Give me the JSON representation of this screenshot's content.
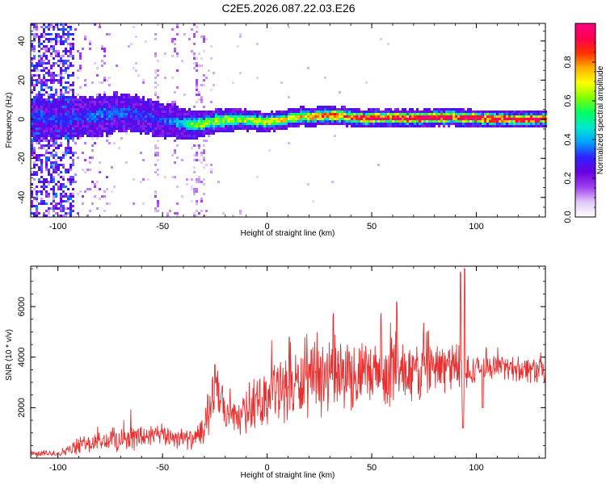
{
  "title": "C2E5.2026.087.22.03.E26",
  "chart_data": [
    {
      "type": "heatmap",
      "name": "spectrogram",
      "xlabel": "Height of straight line (km)",
      "ylabel": "Frequency (Hz)",
      "xlim": [
        -113,
        133
      ],
      "ylim": [
        -50,
        49
      ],
      "xticks": [
        -100,
        -50,
        0,
        50,
        100
      ],
      "yticks": [
        -40,
        -20,
        0,
        20,
        40
      ],
      "colorbar": {
        "label": "Normalized spectral amplitude",
        "range": [
          0,
          1
        ],
        "ticks": [
          "0.0",
          "0.2",
          "0.4",
          "0.6",
          "0.8"
        ],
        "tick_values": [
          0.0,
          0.2,
          0.4,
          0.6,
          0.8
        ],
        "colors": [
          "#ffffff",
          "#e0c8f8",
          "#a040f0",
          "#6a00e0",
          "#3020ff",
          "#00a0ff",
          "#00e8d0",
          "#00ff60",
          "#80ff00",
          "#ffff00",
          "#ffb000",
          "#ff3000",
          "#ff0050",
          "#ff0080"
        ]
      },
      "ridge": [
        {
          "x": -90,
          "f": 0.5,
          "noise": 1.0,
          "amp": 0.3
        },
        {
          "x": -80,
          "f": 2.5,
          "noise": 1.0,
          "amp": 0.35
        },
        {
          "x": -65,
          "f": 3.0,
          "noise": 0.9,
          "amp": 0.32
        },
        {
          "x": -50,
          "f": 0.0,
          "noise": 0.8,
          "amp": 0.3
        },
        {
          "x": -42,
          "f": -2.0,
          "noise": 0.7,
          "amp": 0.4
        },
        {
          "x": -35,
          "f": -3.0,
          "noise": 0.6,
          "amp": 0.55
        },
        {
          "x": -28,
          "f": -1.5,
          "noise": 0.5,
          "amp": 0.6
        },
        {
          "x": -15,
          "f": 0.0,
          "noise": 0.4,
          "amp": 0.6
        },
        {
          "x": 0,
          "f": -1.5,
          "noise": 0.3,
          "amp": 0.65
        },
        {
          "x": 15,
          "f": 1.0,
          "noise": 0.3,
          "amp": 0.7
        },
        {
          "x": 30,
          "f": 2.0,
          "noise": 0.3,
          "amp": 0.8
        },
        {
          "x": 45,
          "f": 0.5,
          "noise": 0.25,
          "amp": 0.85
        },
        {
          "x": 70,
          "f": 0.5,
          "noise": 0.25,
          "amp": 0.9
        },
        {
          "x": 90,
          "f": 1.0,
          "noise": 0.25,
          "amp": 0.9
        },
        {
          "x": 110,
          "f": 0.0,
          "noise": 0.2,
          "amp": 0.92
        },
        {
          "x": 133,
          "f": 0.0,
          "noise": 0.2,
          "amp": 0.92
        }
      ]
    },
    {
      "type": "line",
      "name": "snr",
      "xlabel": "Height of straight line (km)",
      "ylabel": "SNR (10 * v/v)",
      "xlim": [
        -113,
        133
      ],
      "ylim": [
        0,
        7600
      ],
      "xticks": [
        -100,
        -50,
        0,
        50,
        100
      ],
      "yticks": [
        2000,
        4000,
        6000
      ],
      "color": "#e83030",
      "series": [
        {
          "name": "SNR envelope",
          "x": [
            -113,
            -100,
            -95,
            -90,
            -80,
            -70,
            -60,
            -50,
            -40,
            -35,
            -30,
            -26,
            -24,
            -20,
            -15,
            -10,
            -5,
            0,
            5,
            10,
            20,
            30,
            35,
            40,
            50,
            60,
            65,
            70,
            80,
            90,
            93,
            95,
            100,
            110,
            120,
            133
          ],
          "base": [
            180,
            200,
            300,
            500,
            650,
            750,
            850,
            900,
            800,
            700,
            1100,
            2400,
            2800,
            1700,
            1500,
            1800,
            2100,
            2500,
            2700,
            2800,
            3000,
            3200,
            3300,
            3300,
            3200,
            3300,
            3400,
            3400,
            3500,
            3700,
            3300,
            3200,
            3600,
            3600,
            3550,
            3500
          ],
          "spread": [
            120,
            150,
            250,
            400,
            500,
            550,
            600,
            500,
            500,
            400,
            800,
            1200,
            1300,
            800,
            700,
            900,
            1100,
            1300,
            1400,
            1500,
            1600,
            1700,
            1700,
            1700,
            1500,
            1500,
            1400,
            1400,
            1300,
            1100,
            1100,
            1100,
            500,
            500,
            600,
            700
          ]
        }
      ],
      "spikes": [
        {
          "x": 31.5,
          "y": 5900
        },
        {
          "x": 54.5,
          "y": 5900
        },
        {
          "x": 62.0,
          "y": 6300
        },
        {
          "x": 92.5,
          "y": 7400
        },
        {
          "x": 94.5,
          "y": 7600
        },
        {
          "x": 77.0,
          "y": 5200
        },
        {
          "x": 10.5,
          "y": 5000
        },
        {
          "x": -25.0,
          "y": 3800
        }
      ],
      "dips": [
        {
          "x": 93.6,
          "y": 1200
        },
        {
          "x": 103.0,
          "y": 2000
        }
      ]
    }
  ]
}
